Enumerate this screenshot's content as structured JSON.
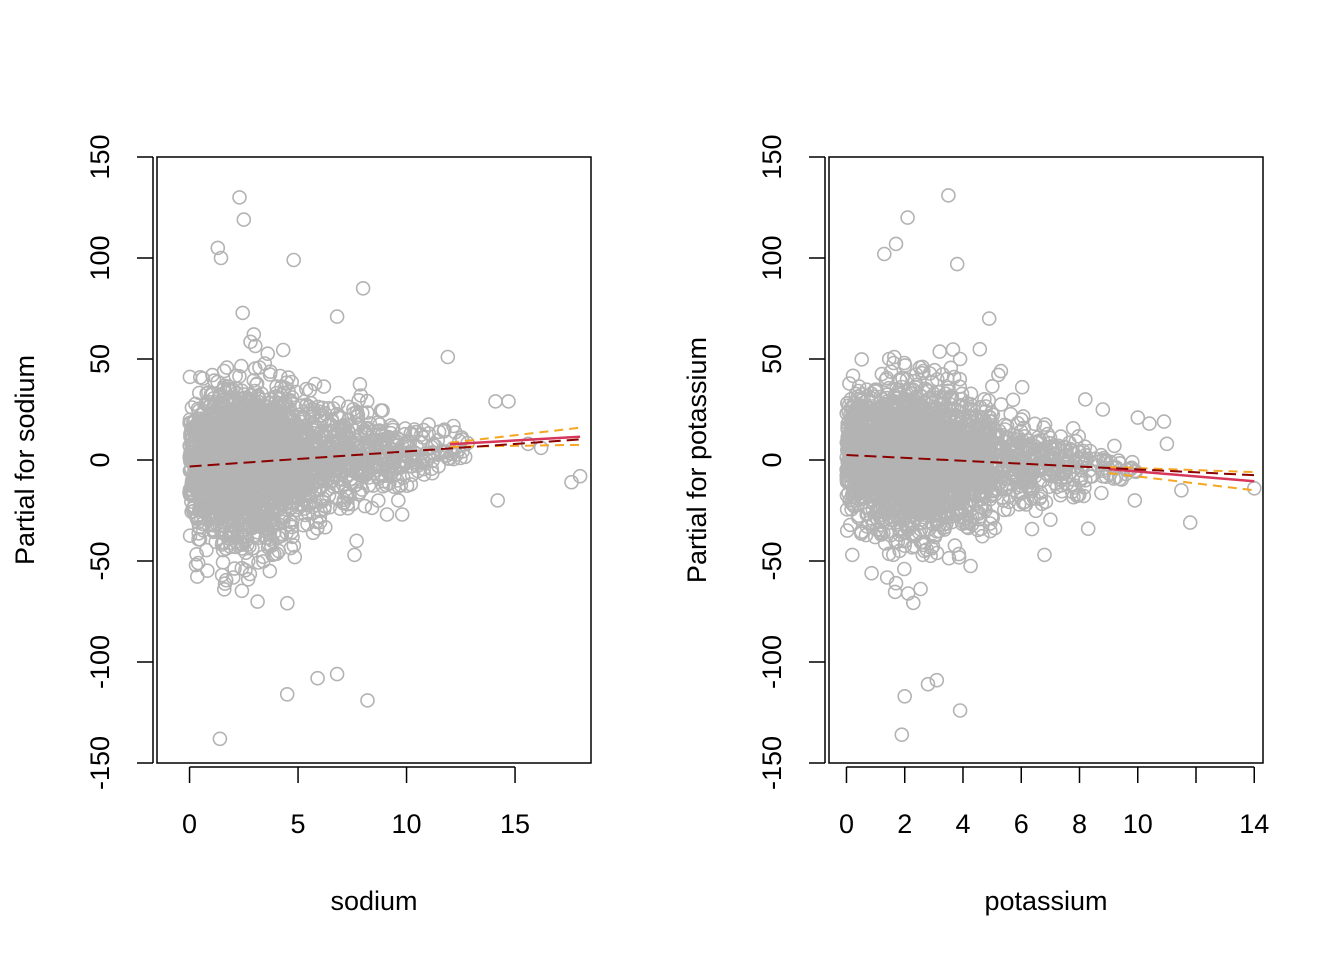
{
  "colors": {
    "points": "#b3b3b3",
    "fit_line": "#d6365a",
    "partial_line": "#8b0000",
    "band": "#f5a623",
    "black_dashed": "#000000"
  },
  "chart_data": [
    {
      "type": "scatter",
      "xlabel": "sodium",
      "ylabel": "Partial for sodium",
      "xlim": [
        -1.5,
        18.5
      ],
      "ylim": [
        -150,
        150
      ],
      "xticks": [
        0,
        5,
        10,
        15
      ],
      "xtick_labels": [
        "0",
        "5",
        "10",
        "15"
      ],
      "yticks": [
        -150,
        -100,
        -50,
        0,
        50,
        100,
        150
      ],
      "ytick_labels": [
        "-150",
        "-100",
        "-50",
        "0",
        "50",
        "100",
        "150"
      ],
      "partial_line": {
        "x": [
          0,
          18
        ],
        "y": [
          -3.2,
          10.2
        ]
      },
      "fit_line": {
        "x": [
          12,
          18
        ],
        "y": [
          7.8,
          11.5
        ]
      },
      "band_upper": {
        "x": [
          12,
          18
        ],
        "y": [
          8.5,
          16
        ]
      },
      "band_lower": {
        "x": [
          12,
          18
        ],
        "y": [
          6.5,
          7.5
        ]
      },
      "highlight_points": [
        {
          "x": 2.3,
          "y": 130
        },
        {
          "x": 2.5,
          "y": 119
        },
        {
          "x": 1.3,
          "y": 105
        },
        {
          "x": 1.45,
          "y": 100
        },
        {
          "x": 4.8,
          "y": 99
        },
        {
          "x": 8,
          "y": 85
        },
        {
          "x": 6.8,
          "y": 71
        },
        {
          "x": 11.9,
          "y": 51
        },
        {
          "x": 1.4,
          "y": -138
        },
        {
          "x": 4.5,
          "y": -116
        },
        {
          "x": 5.9,
          "y": -108
        },
        {
          "x": 6.8,
          "y": -106
        },
        {
          "x": 8.2,
          "y": -119
        },
        {
          "x": 17.6,
          "y": -11
        },
        {
          "x": 18,
          "y": -8
        },
        {
          "x": 14.2,
          "y": -20
        },
        {
          "x": 15.6,
          "y": 8
        },
        {
          "x": 16.2,
          "y": 6
        },
        {
          "x": 14.7,
          "y": 29
        },
        {
          "x": 14.1,
          "y": 29
        },
        {
          "x": 1.6,
          "y": -64
        },
        {
          "x": 1.5,
          "y": -57
        },
        {
          "x": 0.4,
          "y": -51
        },
        {
          "x": 7.6,
          "y": -47
        },
        {
          "x": 7.7,
          "y": -40
        },
        {
          "x": 9.1,
          "y": -27
        },
        {
          "x": 9.8,
          "y": -27
        },
        {
          "x": 3.7,
          "y": -55
        }
      ]
    },
    {
      "type": "scatter",
      "xlabel": "potassium",
      "ylabel": "Partial for potassium",
      "xlim": [
        -0.6,
        14.3
      ],
      "ylim": [
        -150,
        150
      ],
      "xticks": [
        0,
        2,
        4,
        6,
        8,
        10,
        12,
        14
      ],
      "xtick_labels": [
        "0",
        "2",
        "4",
        "6",
        "8",
        "10",
        "",
        "14"
      ],
      "yticks": [
        -150,
        -100,
        -50,
        0,
        50,
        100,
        150
      ],
      "ytick_labels": [
        "-150",
        "-100",
        "-50",
        "0",
        "50",
        "100",
        "150"
      ],
      "partial_line": {
        "x": [
          0,
          14
        ],
        "y": [
          2.5,
          -7.5
        ]
      },
      "fit_line": {
        "x": [
          9,
          14
        ],
        "y": [
          -4.5,
          -10.5
        ]
      },
      "band_upper": {
        "x": [
          9,
          14
        ],
        "y": [
          -3.5,
          -6
        ]
      },
      "band_lower": {
        "x": [
          9,
          14
        ],
        "y": [
          -6.5,
          -15
        ]
      },
      "highlight_points": [
        {
          "x": 3.5,
          "y": 131
        },
        {
          "x": 2.1,
          "y": 120
        },
        {
          "x": 1.7,
          "y": 107
        },
        {
          "x": 1.3,
          "y": 102
        },
        {
          "x": 3.8,
          "y": 97
        },
        {
          "x": 4.9,
          "y": 70
        },
        {
          "x": 1.9,
          "y": -136
        },
        {
          "x": 3.9,
          "y": -124
        },
        {
          "x": 2,
          "y": -117
        },
        {
          "x": 2.8,
          "y": -111
        },
        {
          "x": 3.1,
          "y": -109
        },
        {
          "x": 14,
          "y": -14
        },
        {
          "x": 11.8,
          "y": -31
        },
        {
          "x": 11.5,
          "y": -15
        },
        {
          "x": 10.9,
          "y": 19
        },
        {
          "x": 10.4,
          "y": 18
        },
        {
          "x": 10,
          "y": 21
        },
        {
          "x": 11,
          "y": 8
        },
        {
          "x": 8.2,
          "y": 30
        },
        {
          "x": 8.3,
          "y": -34
        },
        {
          "x": 6.8,
          "y": -47
        },
        {
          "x": 1.7,
          "y": -61
        },
        {
          "x": 0.2,
          "y": -47
        },
        {
          "x": 9.9,
          "y": -20
        },
        {
          "x": 9.2,
          "y": 7
        },
        {
          "x": 8.8,
          "y": 25
        },
        {
          "x": 5.3,
          "y": 44
        },
        {
          "x": 3.9,
          "y": 50
        }
      ]
    }
  ],
  "panels_layout_note_free": true
}
